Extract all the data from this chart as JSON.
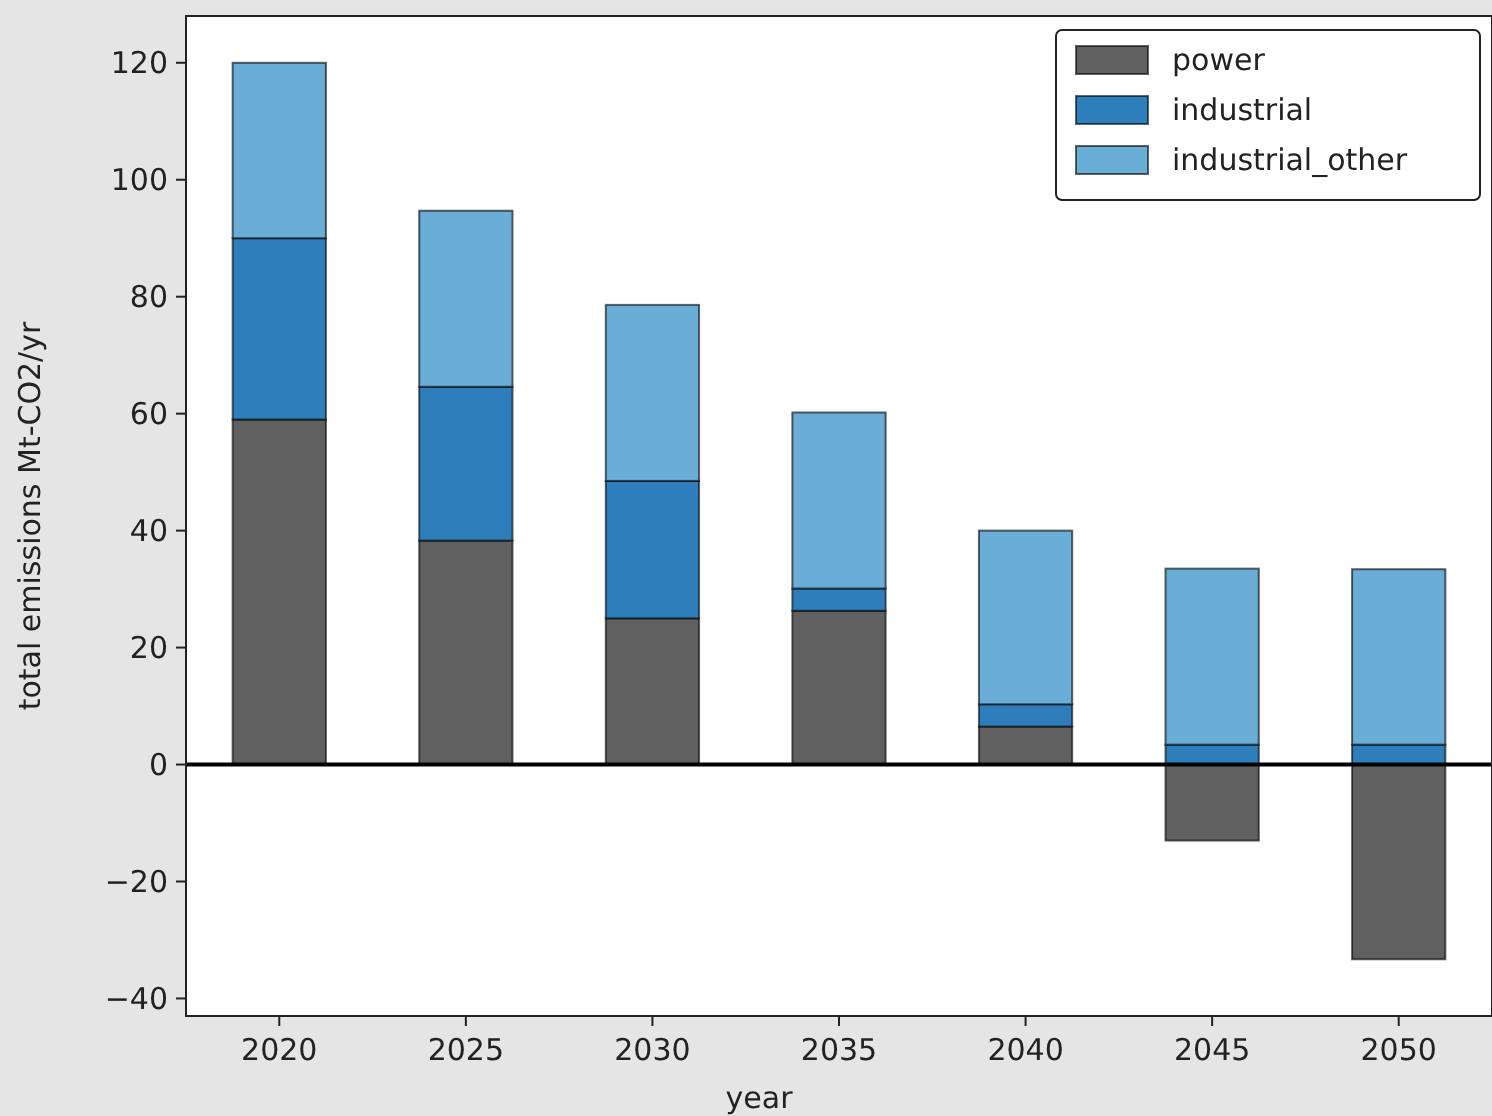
{
  "chart_data": {
    "type": "bar",
    "stacked": true,
    "xlabel": "year",
    "ylabel": "total emissions Mt-CO2/yr",
    "categories": [
      "2020",
      "2025",
      "2030",
      "2035",
      "2040",
      "2045",
      "2050"
    ],
    "series": [
      {
        "name": "power",
        "color": "#606060",
        "values": [
          59,
          38.3,
          25,
          26.3,
          6.5,
          -13,
          -33.3
        ]
      },
      {
        "name": "industrial",
        "color": "#2e7ebc",
        "values": [
          31,
          26.3,
          23.5,
          3.8,
          3.8,
          3.4,
          3.4
        ]
      },
      {
        "name": "industrial_other",
        "color": "#6aadd6",
        "values": [
          30,
          30.1,
          30.1,
          30.1,
          29.7,
          30.1,
          30
        ]
      }
    ],
    "ylim": [
      -43,
      128
    ],
    "yticks": [
      -40,
      -20,
      0,
      20,
      40,
      60,
      80,
      100,
      120
    ],
    "ref_lines": [
      {
        "axis": "y",
        "value": 0,
        "color": "#000000"
      }
    ],
    "legend": "top right",
    "grid": false
  }
}
